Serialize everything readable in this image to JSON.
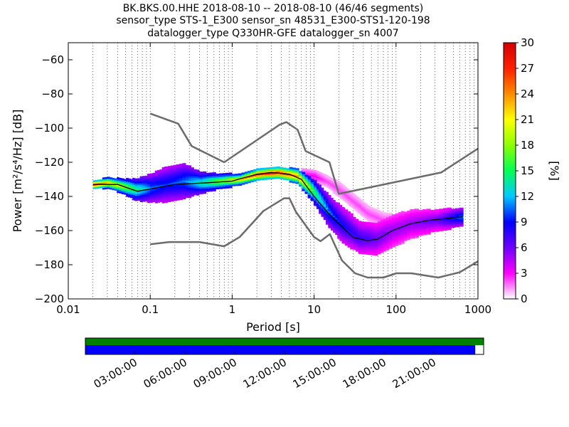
{
  "title_lines": [
    "BK.BKS.00.HHE   2018-08-10 -- 2018-08-10  (46/46 segments)",
    "sensor_type STS-1_E300 sensor_sn 48531_E300-STS1-120-198",
    "datalogger_type Q330HR-GFE datalogger_sn 4007"
  ],
  "chart_data": {
    "type": "heatmap",
    "subtype": "probabilistic power spectral density",
    "xlabel": "Period [s]",
    "ylabel": "Power [m²/s⁴/Hz] [dB]",
    "x_scale": "log",
    "xlim": [
      0.01,
      1000
    ],
    "ylim": [
      -200,
      -50
    ],
    "x_ticks": [
      0.01,
      0.1,
      1,
      10,
      100,
      1000
    ],
    "x_tick_labels": [
      "0.01",
      "0.1",
      "1",
      "10",
      "100",
      "1000"
    ],
    "y_ticks": [
      -200,
      -180,
      -160,
      -140,
      -120,
      -100,
      -80,
      -60
    ],
    "y_tick_labels": [
      "−200",
      "−180",
      "−160",
      "−140",
      "−120",
      "−100",
      "−80",
      "−60"
    ],
    "grid": "dotted vertical lines at log-decade subdivisions",
    "colorbar": {
      "label": "[%]",
      "range": [
        0,
        30
      ],
      "ticks": [
        0,
        3,
        6,
        9,
        12,
        15,
        18,
        21,
        24,
        27,
        30
      ],
      "tick_labels": [
        "0",
        "3",
        "6",
        "9",
        "12",
        "15",
        "18",
        "21",
        "24",
        "27",
        "30"
      ],
      "colormap": "pqlx",
      "colors": [
        "#ffffff",
        "#ff00ff",
        "#6e00ff",
        "#0000ff",
        "#00c8ff",
        "#00ff55",
        "#8cff00",
        "#ffff00",
        "#ff8c00",
        "#ff2000",
        "#d20000"
      ]
    },
    "noise_models": {
      "color": "#6b6b6b",
      "new_high_noise_model": [
        [
          0.1,
          -91.5
        ],
        [
          0.22,
          -97.4
        ],
        [
          0.32,
          -110.5
        ],
        [
          0.8,
          -120
        ],
        [
          3.8,
          -98
        ],
        [
          4.6,
          -96.5
        ],
        [
          6.3,
          -101
        ],
        [
          7.9,
          -113.5
        ],
        [
          15.4,
          -120
        ],
        [
          20,
          -138.5
        ],
        [
          354.8,
          -126
        ],
        [
          1000,
          -112
        ]
      ],
      "new_low_noise_model": [
        [
          0.1,
          -168
        ],
        [
          0.17,
          -166.7
        ],
        [
          0.4,
          -166.7
        ],
        [
          0.8,
          -169.2
        ],
        [
          1.24,
          -163.7
        ],
        [
          2.4,
          -148.6
        ],
        [
          4.3,
          -141.1
        ],
        [
          5,
          -141.1
        ],
        [
          6,
          -149
        ],
        [
          10,
          -163.8
        ],
        [
          12,
          -166.2
        ],
        [
          15.6,
          -162.1
        ],
        [
          21.9,
          -177.5
        ],
        [
          31.6,
          -185
        ],
        [
          45,
          -187.5
        ],
        [
          70,
          -187.5
        ],
        [
          101,
          -185
        ],
        [
          154,
          -185
        ],
        [
          328,
          -187.5
        ],
        [
          600,
          -184.4
        ],
        [
          1000,
          -178
        ]
      ]
    },
    "mean": {
      "color": "#000000",
      "points": [
        [
          0.02,
          -133
        ],
        [
          0.04,
          -133
        ],
        [
          0.07,
          -137
        ],
        [
          0.2,
          -133
        ],
        [
          0.5,
          -132
        ],
        [
          1,
          -131
        ],
        [
          2,
          -127
        ],
        [
          3,
          -126
        ],
        [
          5,
          -127
        ],
        [
          7,
          -130
        ],
        [
          10,
          -140
        ],
        [
          15,
          -150
        ],
        [
          20,
          -156
        ],
        [
          30,
          -164
        ],
        [
          45,
          -166
        ],
        [
          60,
          -165
        ],
        [
          90,
          -160
        ],
        [
          150,
          -156
        ],
        [
          250,
          -154
        ],
        [
          400,
          -153
        ],
        [
          650,
          -152
        ]
      ]
    },
    "density_band": [
      {
        "x": 0.02,
        "y": -133,
        "spread": 2,
        "pct": 26
      },
      {
        "x": 0.03,
        "y": -132,
        "spread": 3,
        "pct": 20
      },
      {
        "x": 0.045,
        "y": -134,
        "spread": 4,
        "pct": 18
      },
      {
        "x": 0.065,
        "y": -136,
        "spread": 6,
        "pct": 14
      },
      {
        "x": 0.1,
        "y": -135,
        "spread": 8,
        "pct": 10
      },
      {
        "x": 0.15,
        "y": -133,
        "spread": 10,
        "pct": 9
      },
      {
        "x": 0.25,
        "y": -131,
        "spread": 10,
        "pct": 10
      },
      {
        "x": 0.4,
        "y": -132,
        "spread": 6,
        "pct": 13
      },
      {
        "x": 0.7,
        "y": -131,
        "spread": 4,
        "pct": 17
      },
      {
        "x": 1.2,
        "y": -130,
        "spread": 3,
        "pct": 20
      },
      {
        "x": 2,
        "y": -127,
        "spread": 3,
        "pct": 25
      },
      {
        "x": 3.5,
        "y": -126,
        "spread": 3,
        "pct": 26
      },
      {
        "x": 6,
        "y": -128,
        "spread": 4,
        "pct": 22
      },
      {
        "x": 10,
        "y": -138,
        "spread": 7,
        "pct": 14
      },
      {
        "x": 15,
        "y": -149,
        "spread": 9,
        "pct": 10
      },
      {
        "x": 22,
        "y": -157,
        "spread": 10,
        "pct": 8
      },
      {
        "x": 35,
        "y": -164,
        "spread": 9,
        "pct": 7
      },
      {
        "x": 55,
        "y": -165,
        "spread": 9,
        "pct": 6
      },
      {
        "x": 90,
        "y": -160,
        "spread": 9,
        "pct": 5
      },
      {
        "x": 150,
        "y": -156,
        "spread": 8,
        "pct": 5
      },
      {
        "x": 300,
        "y": -154,
        "spread": 6,
        "pct": 6
      },
      {
        "x": 600,
        "y": -152,
        "spread": 5,
        "pct": 10
      }
    ],
    "secondary_band": [
      {
        "x": 7,
        "y": -127,
        "spread": 3,
        "pct": 3
      },
      {
        "x": 10,
        "y": -128,
        "spread": 3,
        "pct": 3
      },
      {
        "x": 14,
        "y": -131,
        "spread": 3,
        "pct": 2
      },
      {
        "x": 20,
        "y": -136,
        "spread": 4,
        "pct": 2
      },
      {
        "x": 30,
        "y": -143,
        "spread": 4,
        "pct": 2
      },
      {
        "x": 45,
        "y": -150,
        "spread": 4,
        "pct": 2
      },
      {
        "x": 70,
        "y": -154,
        "spread": 4,
        "pct": 2
      },
      {
        "x": 110,
        "y": -154,
        "spread": 3,
        "pct": 2
      }
    ]
  },
  "timeline": {
    "tick_labels": [
      "03:00:00",
      "06:00:00",
      "09:00:00",
      "12:00:00",
      "15:00:00",
      "18:00:00",
      "21:00:00"
    ],
    "data_coverage_color": "#008000",
    "psd_coverage_color": "#0000ff",
    "psd_coverage_fraction": 0.979
  }
}
